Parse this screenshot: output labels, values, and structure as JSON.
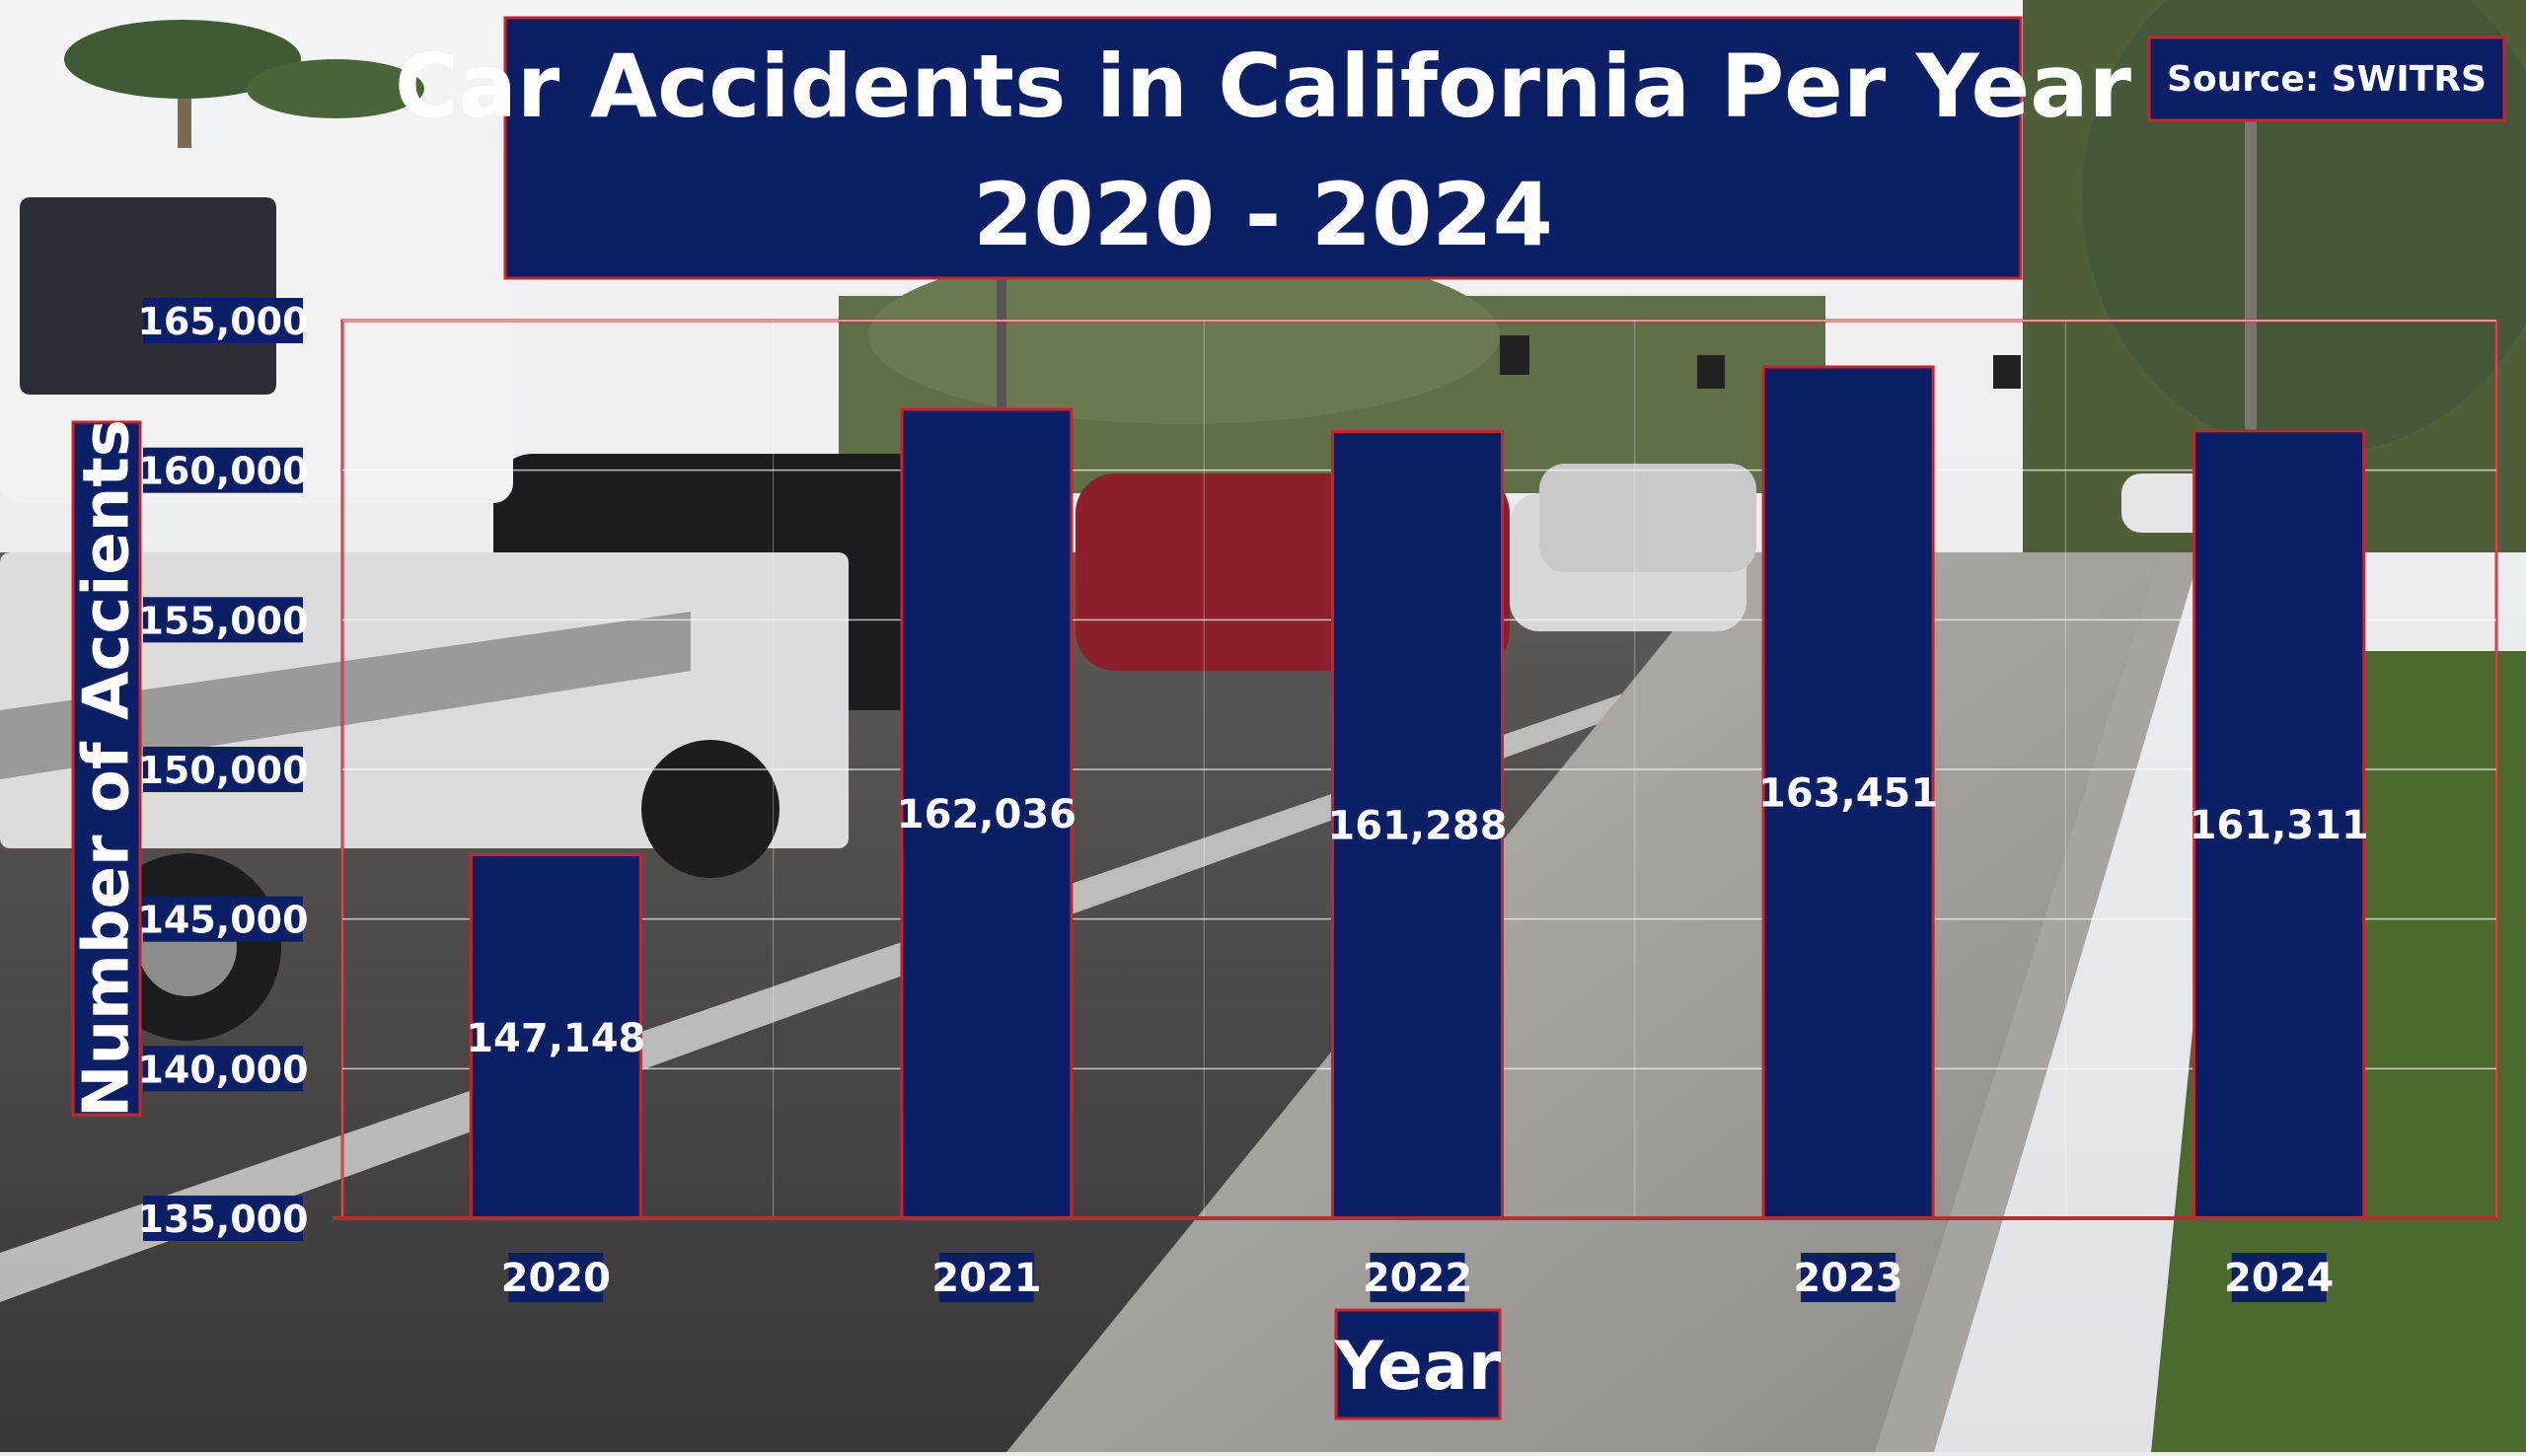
{
  "colors": {
    "box_fill": "#0b1f66",
    "box_border": "#c8242c",
    "text": "#ffffff",
    "plot_border": "#c8242c",
    "grid": "#ffffff"
  },
  "source": "Source: SWITRS",
  "chart_data": {
    "type": "bar",
    "title": "Car Accidents in California Per Year",
    "subtitle": "2020 - 2024",
    "xlabel": "Year",
    "ylabel": "Number of Accients",
    "categories": [
      "2020",
      "2021",
      "2022",
      "2023",
      "2024"
    ],
    "values": [
      147148,
      162036,
      161288,
      163451,
      161311
    ],
    "value_labels": [
      "147,148",
      "162,036",
      "161,288",
      "163,451",
      "161,311"
    ],
    "ylim": [
      135000,
      165000
    ],
    "yticks": [
      135000,
      140000,
      145000,
      150000,
      155000,
      160000,
      165000
    ],
    "ytick_labels": [
      "135,000",
      "140,000",
      "145,000",
      "150,000",
      "155,000",
      "160,000",
      "165,000"
    ],
    "grid": true,
    "legend": "none"
  }
}
